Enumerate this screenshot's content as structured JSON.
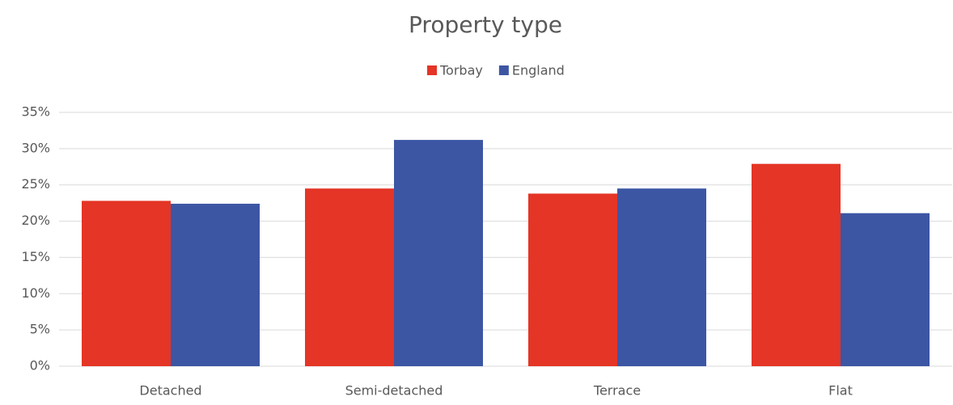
{
  "chart_data": {
    "type": "bar",
    "title": "Property type",
    "categories": [
      "Detached",
      "Semi-detached",
      "Terrace",
      "Flat"
    ],
    "series": [
      {
        "name": "Torbay",
        "color": "#e43526",
        "values": [
          22.8,
          24.5,
          23.8,
          27.9
        ]
      },
      {
        "name": "England",
        "color": "#3c56a4",
        "values": [
          22.4,
          31.2,
          24.5,
          21.1
        ]
      }
    ],
    "ylim": [
      0,
      35
    ],
    "yticks": [
      {
        "value": 0,
        "label": "0%"
      },
      {
        "value": 5,
        "label": "5%"
      },
      {
        "value": 10,
        "label": "10%"
      },
      {
        "value": 15,
        "label": "15%"
      },
      {
        "value": 20,
        "label": "20%"
      },
      {
        "value": 25,
        "label": "25%"
      },
      {
        "value": 30,
        "label": "30%"
      },
      {
        "value": 35,
        "label": "35%"
      }
    ],
    "grid": true,
    "legend": "top"
  }
}
